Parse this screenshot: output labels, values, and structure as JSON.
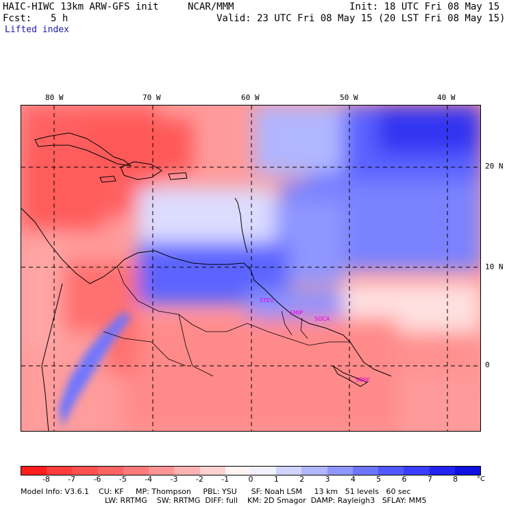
{
  "header": {
    "model_title": "HAIC-HIWC 13km ARW-GFS init",
    "center": "NCAR/MMM",
    "init_line": "Init: 18 UTC Fri 08 May 15",
    "fcst_label": "Fcst:",
    "fcst_value": "5 h",
    "valid_line": "Valid: 23 UTC Fri 08 May 15 (20 LST Fri 08 May 15)",
    "field_name": "Lifted index"
  },
  "axes": {
    "longitude_ticks": [
      "80 W",
      "70 W",
      "60 W",
      "50 W",
      "40 W"
    ],
    "latitude_ticks": [
      "20 N",
      "10 N",
      "0"
    ]
  },
  "map_labels": {
    "label_1": "STEU",
    "label_2": "SMJP",
    "label_3": "SOCA",
    "label_4": "SBBE"
  },
  "colorbar": {
    "unit": "°C",
    "tick_labels": [
      "-8",
      "-7",
      "-6",
      "-5",
      "-4",
      "-3",
      "-2",
      "-1",
      "0",
      "1",
      "2",
      "3",
      "4",
      "5",
      "6",
      "7",
      "8"
    ],
    "colors": [
      "#ff1e1e",
      "#ff3c3c",
      "#ff5050",
      "#ff6464",
      "#ff7a7a",
      "#ff9494",
      "#ffb2b2",
      "#ffd2d2",
      "#fff3f3",
      "#f0f0ff",
      "#d0d4ff",
      "#b0b6ff",
      "#8e96ff",
      "#6e76ff",
      "#5058ff",
      "#3a3eff",
      "#2424f0",
      "#1010e0"
    ]
  },
  "footer": {
    "line1": "Model Info: V3.6.1    CU: KF     MP: Thompson     PBL: YSU      SF: Noah LSM     13 km   51 levels   60 sec",
    "line2": "LW: RRTMG    SW: RRTMG  DIFF: full    KM: 2D Smagor  DAMP: Rayleigh3   SFLAY: MM5"
  }
}
